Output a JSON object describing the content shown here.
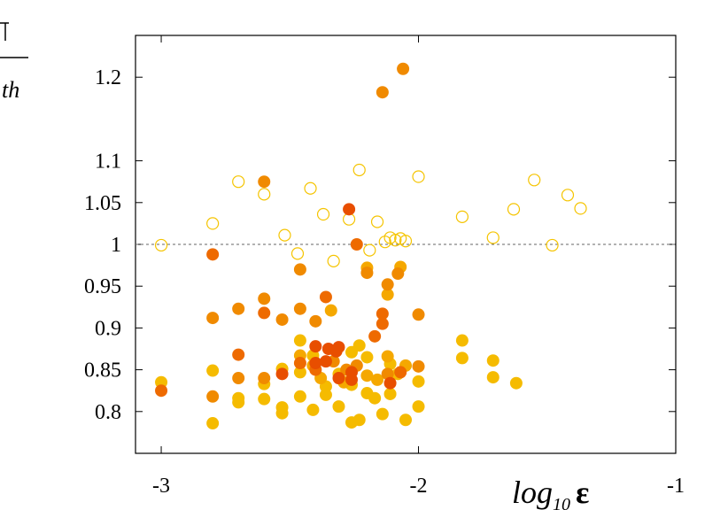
{
  "chart_data": {
    "type": "scatter",
    "title": "",
    "xlabel": "log10 ε",
    "xlabel_parts": {
      "base": "log",
      "sub": "10",
      "symbol": "ε"
    },
    "ylabel_fragment": "th",
    "xlim": [
      -3.1,
      -1
    ],
    "ylim": [
      0.75,
      1.25
    ],
    "x_ticks": [
      -3,
      -2,
      -1
    ],
    "x_tick_labels": [
      "-3",
      "-2",
      "-1"
    ],
    "y_ticks": [
      0.8,
      0.85,
      0.9,
      0.95,
      1,
      1.05,
      1.1,
      1.2
    ],
    "y_tick_labels": [
      "0.8",
      "0.85",
      "0.9",
      "0.95",
      "1",
      "1.05",
      "1.1",
      "1.2"
    ],
    "reference_line": {
      "y": 1.0,
      "style": "dashed"
    },
    "colors": {
      "yellow": "#f5bb00",
      "amber": "#f5a800",
      "orange": "#f08a00",
      "deep_orange": "#ee6a00",
      "red_orange": "#e84e00",
      "open": "#f5c400"
    },
    "series": [
      {
        "name": "open",
        "marker": "open-circle",
        "color": "open",
        "points": [
          [
            -3.0,
            0.999
          ],
          [
            -2.8,
            1.025
          ],
          [
            -2.7,
            1.075
          ],
          [
            -2.6,
            1.06
          ],
          [
            -2.52,
            1.011
          ],
          [
            -2.47,
            0.989
          ],
          [
            -2.42,
            1.067
          ],
          [
            -2.37,
            1.036
          ],
          [
            -2.33,
            0.98
          ],
          [
            -2.27,
            1.03
          ],
          [
            -2.23,
            1.089
          ],
          [
            -2.19,
            0.993
          ],
          [
            -2.16,
            1.027
          ],
          [
            -2.13,
            1.003
          ],
          [
            -2.11,
            1.008
          ],
          [
            -2.09,
            1.005
          ],
          [
            -2.07,
            1.007
          ],
          [
            -2.05,
            1.004
          ],
          [
            -2.0,
            1.081
          ],
          [
            -1.83,
            1.033
          ],
          [
            -1.71,
            1.008
          ],
          [
            -1.63,
            1.042
          ],
          [
            -1.55,
            1.077
          ],
          [
            -1.48,
            0.999
          ],
          [
            -1.42,
            1.059
          ],
          [
            -1.37,
            1.043
          ]
        ]
      },
      {
        "name": "yellow",
        "marker": "filled-circle",
        "color": "yellow",
        "points": [
          [
            -3.0,
            0.835
          ],
          [
            -2.8,
            0.849
          ],
          [
            -2.8,
            0.786
          ],
          [
            -2.7,
            0.816
          ],
          [
            -2.7,
            0.811
          ],
          [
            -2.6,
            0.833
          ],
          [
            -2.6,
            0.815
          ],
          [
            -2.53,
            0.851
          ],
          [
            -2.53,
            0.805
          ],
          [
            -2.53,
            0.798
          ],
          [
            -2.46,
            0.885
          ],
          [
            -2.46,
            0.847
          ],
          [
            -2.46,
            0.818
          ],
          [
            -2.41,
            0.867
          ],
          [
            -2.41,
            0.802
          ],
          [
            -2.36,
            0.83
          ],
          [
            -2.36,
            0.82
          ],
          [
            -2.31,
            0.845
          ],
          [
            -2.31,
            0.806
          ],
          [
            -2.26,
            0.871
          ],
          [
            -2.26,
            0.832
          ],
          [
            -2.26,
            0.787
          ],
          [
            -2.23,
            0.879
          ],
          [
            -2.23,
            0.79
          ],
          [
            -2.2,
            0.865
          ],
          [
            -2.2,
            0.822
          ],
          [
            -2.17,
            0.816
          ],
          [
            -2.14,
            0.797
          ],
          [
            -2.11,
            0.857
          ],
          [
            -2.11,
            0.821
          ],
          [
            -2.08,
            0.845
          ],
          [
            -2.05,
            0.79
          ],
          [
            -2.0,
            0.836
          ],
          [
            -2.0,
            0.806
          ],
          [
            -1.83,
            0.885
          ],
          [
            -1.83,
            0.864
          ],
          [
            -1.71,
            0.861
          ],
          [
            -1.71,
            0.841
          ],
          [
            -1.62,
            0.834
          ]
        ]
      },
      {
        "name": "amber",
        "marker": "filled-circle",
        "color": "amber",
        "points": [
          [
            -2.34,
            0.921
          ],
          [
            -2.2,
            0.972
          ],
          [
            -2.12,
            0.94
          ],
          [
            -2.12,
            0.866
          ],
          [
            -2.07,
            0.973
          ],
          [
            -2.05,
            0.855
          ],
          [
            -2.2,
            0.843
          ],
          [
            -2.16,
            0.838
          ],
          [
            -2.46,
            0.867
          ],
          [
            -2.38,
            0.84
          ],
          [
            -2.29,
            0.835
          ],
          [
            -2.41,
            0.855
          ]
        ]
      },
      {
        "name": "orange",
        "marker": "filled-circle",
        "color": "orange",
        "points": [
          [
            -2.8,
            0.818
          ],
          [
            -2.7,
            0.923
          ],
          [
            -2.7,
            0.84
          ],
          [
            -2.6,
            1.075
          ],
          [
            -2.6,
            0.935
          ],
          [
            -2.6,
            0.84
          ],
          [
            -2.53,
            0.91
          ],
          [
            -2.46,
            0.923
          ],
          [
            -2.46,
            0.97
          ],
          [
            -2.4,
            0.908
          ],
          [
            -2.33,
            0.86
          ],
          [
            -2.2,
            0.966
          ],
          [
            -2.14,
            1.182
          ],
          [
            -2.12,
            0.952
          ],
          [
            -2.08,
            0.965
          ],
          [
            -2.06,
            1.21
          ],
          [
            -2.0,
            0.916
          ],
          [
            -2.0,
            0.854
          ],
          [
            -2.8,
            0.912
          ],
          [
            -2.24,
            0.855
          ],
          [
            -2.28,
            0.85
          ],
          [
            -2.12,
            0.845
          ]
        ]
      },
      {
        "name": "deep_orange",
        "marker": "filled-circle",
        "color": "deep_orange",
        "points": [
          [
            -3.0,
            0.825
          ],
          [
            -2.8,
            0.988
          ],
          [
            -2.7,
            0.868
          ],
          [
            -2.6,
            0.918
          ],
          [
            -2.46,
            0.858
          ],
          [
            -2.4,
            0.85
          ],
          [
            -2.36,
            0.937
          ],
          [
            -2.24,
            1.0
          ],
          [
            -2.17,
            0.89
          ],
          [
            -2.14,
            0.917
          ],
          [
            -2.14,
            0.905
          ],
          [
            -2.07,
            0.847
          ]
        ]
      },
      {
        "name": "red_orange",
        "marker": "filled-circle",
        "color": "red_orange",
        "points": [
          [
            -2.53,
            0.845
          ],
          [
            -2.4,
            0.878
          ],
          [
            -2.35,
            0.875
          ],
          [
            -2.31,
            0.877
          ],
          [
            -2.27,
            1.042
          ],
          [
            -2.26,
            0.847
          ],
          [
            -2.11,
            0.834
          ],
          [
            -2.36,
            0.86
          ],
          [
            -2.32,
            0.872
          ],
          [
            -2.4,
            0.858
          ],
          [
            -2.31,
            0.84
          ],
          [
            -2.26,
            0.838
          ]
        ]
      }
    ]
  }
}
